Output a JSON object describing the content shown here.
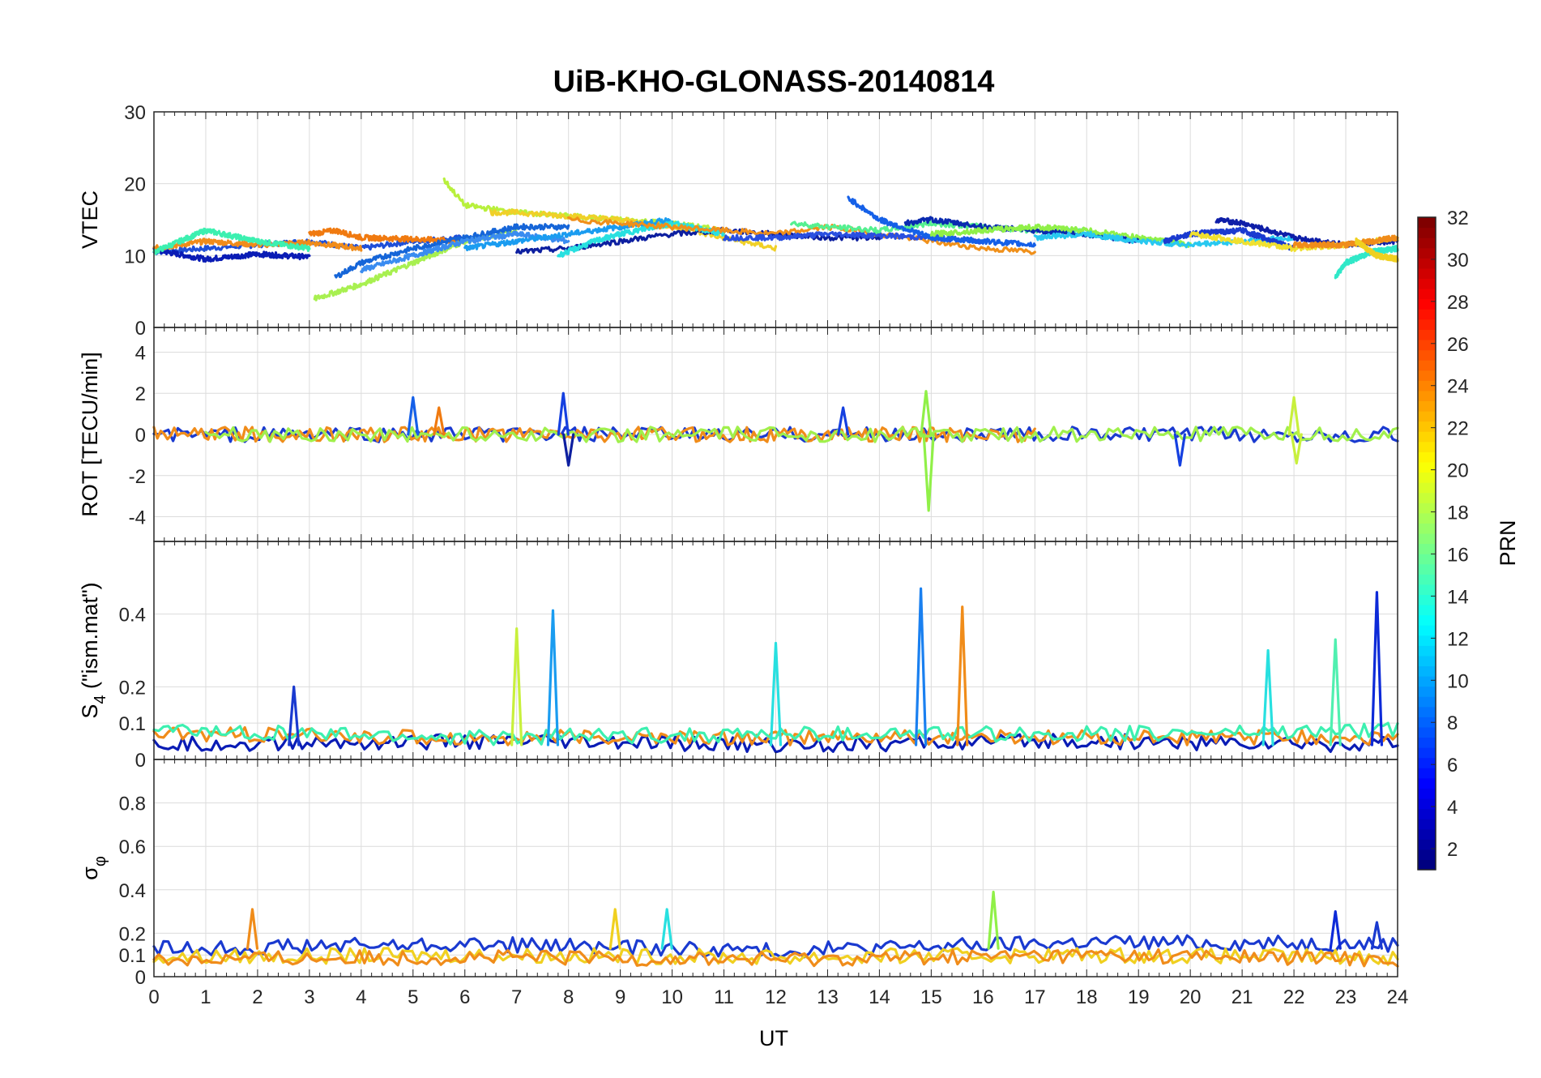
{
  "chart_data": {
    "type": "line",
    "title": "UiB-KHO-GLONASS-20140814",
    "xlabel": "UT",
    "x_ticks": [
      "0",
      "1",
      "2",
      "3",
      "4",
      "5",
      "6",
      "7",
      "8",
      "9",
      "10",
      "11",
      "12",
      "13",
      "14",
      "15",
      "16",
      "17",
      "18",
      "19",
      "20",
      "21",
      "22",
      "23",
      "24"
    ],
    "xlim": [
      0,
      24
    ],
    "grid": true,
    "panels": [
      {
        "id": "vtec",
        "ylabel": "VTEC",
        "ylim": [
          0,
          30
        ],
        "y_ticks": [
          0,
          10,
          20,
          30
        ],
        "y_tick_labels": [
          "0",
          "10",
          "20",
          "30"
        ],
        "series": [
          {
            "color": "#1f4fd8",
            "x": [
              0,
              1,
              2,
              3,
              4,
              5,
              6
            ],
            "y": [
              10.5,
              11,
              11.5,
              12,
              11,
              12,
              12.5
            ]
          },
          {
            "color": "#0a1cb5",
            "x": [
              0,
              1,
              2,
              3
            ],
            "y": [
              10.8,
              9.5,
              10.2,
              9.8
            ]
          },
          {
            "color": "#f08c1a",
            "x": [
              0,
              1,
              2,
              3,
              4
            ],
            "y": [
              11,
              12,
              11.5,
              11.8,
              11
            ]
          },
          {
            "color": "#3cf0b0",
            "x": [
              0,
              0.5,
              1,
              2,
              3
            ],
            "y": [
              10.5,
              12,
              13.5,
              12,
              11
            ]
          },
          {
            "color": "#f07a10",
            "x": [
              3,
              3.5,
              4,
              5,
              6
            ],
            "y": [
              13,
              13.5,
              12.5,
              12.3,
              12
            ]
          },
          {
            "color": "#a8f050",
            "x": [
              3.1,
              4,
              5,
              6,
              7
            ],
            "y": [
              4,
              6,
              9,
              12,
              13.5
            ]
          },
          {
            "color": "#1565d8",
            "x": [
              3.5,
              4,
              5,
              6,
              7,
              8
            ],
            "y": [
              7,
              9,
              11,
              12.5,
              14,
              14
            ]
          },
          {
            "color": "#3a8cf0",
            "x": [
              4,
              5,
              6,
              7,
              8
            ],
            "y": [
              8,
              10,
              12,
              13,
              12
            ]
          },
          {
            "color": "#b8f03c",
            "x": [
              5.6,
              6,
              7,
              8,
              9,
              10,
              11
            ],
            "y": [
              20.5,
              17,
              16,
              15.5,
              15,
              14.5,
              13.5
            ]
          },
          {
            "color": "#f0d028",
            "x": [
              6.5,
              7,
              8,
              9,
              10,
              11,
              12
            ],
            "y": [
              16,
              16,
              15.5,
              15,
              14,
              12.5,
              11
            ]
          },
          {
            "color": "#1a9cf0",
            "x": [
              6,
              7,
              8,
              9,
              10
            ],
            "y": [
              11,
              12,
              13,
              14,
              15
            ]
          },
          {
            "color": "#0d1fa0",
            "x": [
              7,
              8,
              9,
              10,
              11,
              12,
              13,
              14
            ],
            "y": [
              10.5,
              11,
              12,
              13,
              13.5,
              13,
              12.5,
              12.5
            ]
          },
          {
            "color": "#28e0e0",
            "x": [
              7.8,
              8.5,
              9,
              10,
              11
            ],
            "y": [
              10,
              12,
              13,
              14.5,
              13
            ]
          },
          {
            "color": "#f0901a",
            "x": [
              8,
              9,
              10,
              11,
              12,
              13,
              14,
              15,
              16,
              17
            ],
            "y": [
              15,
              14.5,
              14,
              13.5,
              13,
              14,
              13,
              12,
              11,
              10.5
            ]
          },
          {
            "color": "#2a4fe0",
            "x": [
              11,
              12,
              13,
              14,
              15,
              16
            ],
            "y": [
              12.5,
              12.5,
              13,
              12.8,
              12.5,
              12
            ]
          },
          {
            "color": "#55f090",
            "x": [
              12.3,
              13,
              14,
              15,
              16,
              17,
              18
            ],
            "y": [
              14.5,
              14,
              13.5,
              14.5,
              14,
              13.5,
              13.5
            ]
          },
          {
            "color": "#1560e8",
            "x": [
              13.4,
              14,
              15,
              16,
              17
            ],
            "y": [
              18,
              15,
              12.5,
              12,
              11.5
            ]
          },
          {
            "color": "#0a2ab0",
            "x": [
              14.5,
              15,
              16,
              17,
              18,
              19
            ],
            "y": [
              14.5,
              15,
              14,
              13.5,
              13,
              12
            ]
          },
          {
            "color": "#90f048",
            "x": [
              15,
              16,
              17,
              18,
              19,
              20
            ],
            "y": [
              13,
              13.5,
              14,
              13.5,
              12.5,
              11.5
            ]
          },
          {
            "color": "#28c8f0",
            "x": [
              17,
              18,
              19,
              20,
              21,
              22
            ],
            "y": [
              12.5,
              13,
              12,
              11.5,
              12,
              12.5
            ]
          },
          {
            "color": "#1a3ad0",
            "x": [
              19.5,
              20,
              21,
              22
            ],
            "y": [
              12,
              13,
              13.5,
              11
            ]
          },
          {
            "color": "#0e1ea8",
            "x": [
              20.5,
              21,
              22,
              23,
              24
            ],
            "y": [
              15,
              14.5,
              12.5,
              11.5,
              12
            ]
          },
          {
            "color": "#f0e030",
            "x": [
              20,
              21,
              22,
              23,
              24
            ],
            "y": [
              13,
              12,
              11,
              11.5,
              12.5
            ]
          },
          {
            "color": "#f08c1a",
            "x": [
              22,
              23,
              24
            ],
            "y": [
              11.5,
              11.5,
              12.5
            ]
          },
          {
            "color": "#30e8c8",
            "x": [
              22.8,
              23,
              23.5,
              24
            ],
            "y": [
              7,
              9,
              10.5,
              11
            ]
          },
          {
            "color": "#f0d020",
            "x": [
              23.2,
              23.6,
              24
            ],
            "y": [
              12,
              10,
              9.5
            ]
          }
        ]
      },
      {
        "id": "rot",
        "ylabel": "ROT [TECU/min]",
        "ylim": [
          -5.2,
          5.2
        ],
        "y_ticks": [
          -4,
          -2,
          0,
          2,
          4
        ],
        "y_tick_labels": [
          "-4",
          "-2",
          "0",
          "2",
          "4"
        ],
        "series": [
          {
            "color": "#1a3ad0",
            "x": [
              0,
              5,
              10,
              15,
              20,
              24
            ],
            "y": [
              0,
              0,
              0,
              0,
              0,
              0
            ]
          },
          {
            "color": "#f08c1a",
            "x": [
              0,
              8,
              17
            ],
            "y": [
              0,
              0,
              0
            ]
          },
          {
            "color": "#a0f04c",
            "x": [
              1,
              9,
              18,
              24
            ],
            "y": [
              0,
              0,
              0,
              0
            ]
          }
        ],
        "spikes": [
          {
            "x": 5.0,
            "y": 1.8,
            "color": "#1560e8"
          },
          {
            "x": 5.5,
            "y": 1.3,
            "color": "#f07a10"
          },
          {
            "x": 7.9,
            "y": 2.0,
            "color": "#1540e0"
          },
          {
            "x": 8.0,
            "y": -1.5,
            "color": "#0d1fa0"
          },
          {
            "x": 13.3,
            "y": 1.3,
            "color": "#1540e0"
          },
          {
            "x": 14.9,
            "y": 2.1,
            "color": "#90f048"
          },
          {
            "x": 14.95,
            "y": -3.7,
            "color": "#90f048"
          },
          {
            "x": 19.8,
            "y": -1.5,
            "color": "#1540e0"
          },
          {
            "x": 22.0,
            "y": 1.8,
            "color": "#c8f03c"
          },
          {
            "x": 22.05,
            "y": -1.4,
            "color": "#c8f03c"
          }
        ]
      },
      {
        "id": "s4",
        "ylabel": "S",
        "ylabel_sub": "4",
        "ylabel_rest": " (\"ism.mat\")",
        "ylim": [
          0,
          0.6
        ],
        "y_ticks": [
          0,
          0.1,
          0.2,
          0.4
        ],
        "y_tick_labels": [
          "0",
          "0.1",
          "0.2",
          "0.4"
        ],
        "series": [
          {
            "color": "#0a1cb5",
            "x": [
              0,
              6,
              12,
              18,
              24
            ],
            "y": [
              0.04,
              0.05,
              0.04,
              0.05,
              0.04
            ]
          },
          {
            "color": "#f08c1a",
            "x": [
              0,
              6,
              12,
              18,
              24
            ],
            "y": [
              0.07,
              0.06,
              0.06,
              0.06,
              0.06
            ]
          },
          {
            "color": "#3cf0b0",
            "x": [
              0,
              6,
              12,
              18,
              24
            ],
            "y": [
              0.08,
              0.06,
              0.07,
              0.07,
              0.08
            ]
          }
        ],
        "spikes": [
          {
            "x": 2.7,
            "y": 0.2,
            "color": "#1a3ad0"
          },
          {
            "x": 7.0,
            "y": 0.36,
            "color": "#c8f03c"
          },
          {
            "x": 7.7,
            "y": 0.41,
            "color": "#1a9cf0"
          },
          {
            "x": 12.0,
            "y": 0.32,
            "color": "#28e0e0"
          },
          {
            "x": 14.8,
            "y": 0.47,
            "color": "#1a80f0"
          },
          {
            "x": 15.6,
            "y": 0.42,
            "color": "#f08c1a"
          },
          {
            "x": 21.5,
            "y": 0.3,
            "color": "#28e0e0"
          },
          {
            "x": 22.8,
            "y": 0.33,
            "color": "#50f0b0"
          },
          {
            "x": 23.6,
            "y": 0.46,
            "color": "#0d2ad8"
          }
        ]
      },
      {
        "id": "sigma",
        "ylabel": "σ",
        "ylabel_sub": "φ",
        "ylim": [
          0,
          1.0
        ],
        "y_ticks": [
          0,
          0.1,
          0.2,
          0.4,
          0.6,
          0.8
        ],
        "y_tick_labels": [
          "0",
          "0.1",
          "0.2",
          "0.4",
          "0.6",
          "0.8"
        ],
        "series": [
          {
            "color": "#1a3ad0",
            "x": [
              0,
              6,
              12,
              18,
              24
            ],
            "y": [
              0.13,
              0.15,
              0.12,
              0.16,
              0.15
            ]
          },
          {
            "color": "#f0d020",
            "x": [
              0,
              6,
              12,
              18,
              24
            ],
            "y": [
              0.09,
              0.1,
              0.09,
              0.1,
              0.09
            ]
          },
          {
            "color": "#f08c1a",
            "x": [
              0,
              6,
              12,
              18,
              24
            ],
            "y": [
              0.08,
              0.09,
              0.08,
              0.1,
              0.08
            ]
          }
        ],
        "spikes": [
          {
            "x": 1.9,
            "y": 0.31,
            "color": "#f08c1a"
          },
          {
            "x": 8.9,
            "y": 0.31,
            "color": "#f0d020"
          },
          {
            "x": 9.9,
            "y": 0.31,
            "color": "#28e0e0"
          },
          {
            "x": 16.2,
            "y": 0.39,
            "color": "#90f048"
          },
          {
            "x": 22.8,
            "y": 0.3,
            "color": "#0d2ad8"
          },
          {
            "x": 23.6,
            "y": 0.25,
            "color": "#1a3ad0"
          }
        ]
      }
    ],
    "colorbar": {
      "label": "PRN",
      "range": [
        1,
        32
      ],
      "ticks": [
        "2",
        "4",
        "6",
        "8",
        "10",
        "12",
        "14",
        "16",
        "18",
        "20",
        "22",
        "24",
        "26",
        "28",
        "30",
        "32"
      ],
      "colormap": "jet"
    }
  }
}
